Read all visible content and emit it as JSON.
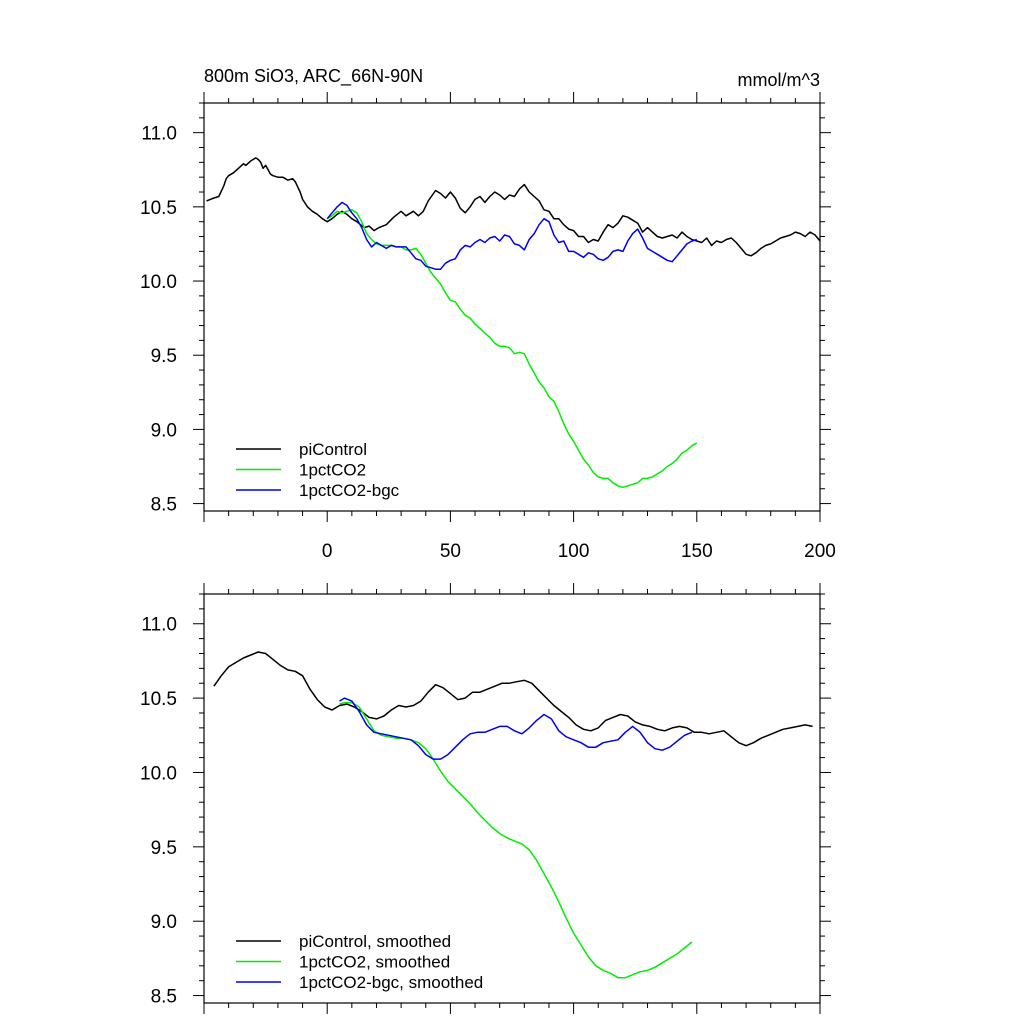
{
  "header": {
    "title": "800m SiO3, ARC_66N-90N",
    "units": "mmol/m^3"
  },
  "chart_data": [
    {
      "type": "line",
      "panel": "top",
      "title": "800m SiO3, ARC_66N-90N",
      "units": "mmol/m^3",
      "xlim": [
        -50,
        200
      ],
      "ylim": [
        8.45,
        11.2
      ],
      "x_ticks": [
        0,
        50,
        100,
        150,
        200
      ],
      "y_ticks": [
        8.5,
        9.0,
        9.5,
        10.0,
        10.5,
        11.0
      ],
      "x_tick_labels": [
        "0",
        "50",
        "100",
        "150",
        "200"
      ],
      "y_tick_labels": [
        "8.5",
        "9.0",
        "9.5",
        "10.0",
        "10.5",
        "11.0"
      ],
      "legend_position": "bottom-left",
      "series": [
        {
          "name": "piControl",
          "color": "#000000",
          "x": [
            -49,
            -46,
            -44,
            -42,
            -41,
            -40,
            -38,
            -36,
            -34,
            -33,
            -31,
            -30,
            -29,
            -28,
            -27,
            -26,
            -25,
            -24,
            -23,
            -22,
            -20,
            -18,
            -16,
            -14,
            -13,
            -11,
            -10,
            -8,
            -6,
            -4,
            -2,
            0,
            2,
            4,
            6,
            8,
            10,
            12,
            15,
            17,
            19,
            21,
            24,
            27,
            30,
            32,
            35,
            37,
            39,
            41,
            44,
            46,
            48,
            50,
            52,
            54,
            56,
            58,
            60,
            62,
            64,
            66,
            68,
            70,
            72,
            74,
            76,
            78,
            80,
            82,
            84,
            86,
            88,
            90,
            92,
            94,
            96,
            98,
            100,
            102,
            104,
            106,
            108,
            110,
            112,
            114,
            116,
            118,
            120,
            122,
            124,
            126,
            128,
            130,
            132,
            134,
            136,
            138,
            140,
            142,
            144,
            146,
            148,
            150,
            152,
            154,
            156,
            158,
            160,
            162,
            164,
            166,
            168,
            170,
            172,
            174,
            176,
            178,
            180,
            182,
            184,
            186,
            188,
            190,
            192,
            194,
            196,
            198,
            200
          ],
          "values": [
            10.54,
            10.56,
            10.57,
            10.64,
            10.69,
            10.71,
            10.73,
            10.76,
            10.79,
            10.78,
            10.81,
            10.82,
            10.83,
            10.82,
            10.8,
            10.76,
            10.78,
            10.75,
            10.72,
            10.71,
            10.7,
            10.7,
            10.68,
            10.69,
            10.67,
            10.6,
            10.55,
            10.5,
            10.47,
            10.45,
            10.42,
            10.4,
            10.42,
            10.45,
            10.47,
            10.45,
            10.42,
            10.4,
            10.36,
            10.37,
            10.34,
            10.36,
            10.38,
            10.43,
            10.47,
            10.44,
            10.47,
            10.44,
            10.47,
            10.54,
            10.61,
            10.59,
            10.56,
            10.6,
            10.56,
            10.49,
            10.46,
            10.5,
            10.55,
            10.57,
            10.53,
            10.57,
            10.6,
            10.58,
            10.55,
            10.58,
            10.57,
            10.62,
            10.65,
            10.6,
            10.57,
            10.54,
            10.48,
            10.47,
            10.42,
            10.42,
            10.38,
            10.35,
            10.34,
            10.3,
            10.3,
            10.26,
            10.28,
            10.27,
            10.33,
            10.38,
            10.36,
            10.39,
            10.44,
            10.43,
            10.41,
            10.39,
            10.33,
            10.36,
            10.33,
            10.3,
            10.29,
            10.3,
            10.31,
            10.29,
            10.33,
            10.3,
            10.28,
            10.27,
            10.26,
            10.29,
            10.24,
            10.27,
            10.26,
            10.28,
            10.29,
            10.26,
            10.22,
            10.18,
            10.17,
            10.19,
            10.22,
            10.24,
            10.25,
            10.27,
            10.29,
            10.3,
            10.31,
            10.33,
            10.32,
            10.3,
            10.33,
            10.31,
            10.27
          ]
        },
        {
          "name": "1pctCO2",
          "color": "#00ee00",
          "x": [
            0,
            2,
            4,
            6,
            8,
            10,
            12,
            14,
            16,
            18,
            20,
            22,
            24,
            26,
            28,
            30,
            32,
            34,
            36,
            38,
            40,
            42,
            44,
            46,
            48,
            50,
            52,
            54,
            56,
            58,
            60,
            62,
            64,
            66,
            68,
            70,
            72,
            74,
            76,
            78,
            80,
            82,
            84,
            86,
            88,
            90,
            92,
            94,
            96,
            98,
            100,
            102,
            104,
            106,
            108,
            110,
            112,
            114,
            116,
            118,
            120,
            122,
            124,
            126,
            128,
            130,
            132,
            134,
            136,
            138,
            140,
            142,
            144,
            146,
            148,
            150
          ],
          "values": [
            10.42,
            10.44,
            10.47,
            10.46,
            10.47,
            10.48,
            10.46,
            10.4,
            10.32,
            10.28,
            10.25,
            10.24,
            10.24,
            10.24,
            10.23,
            10.23,
            10.21,
            10.21,
            10.22,
            10.18,
            10.12,
            10.06,
            10.02,
            9.98,
            9.92,
            9.87,
            9.86,
            9.81,
            9.77,
            9.75,
            9.71,
            9.68,
            9.65,
            9.62,
            9.58,
            9.56,
            9.56,
            9.55,
            9.51,
            9.52,
            9.51,
            9.44,
            9.38,
            9.32,
            9.28,
            9.22,
            9.19,
            9.12,
            9.04,
            8.97,
            8.92,
            8.86,
            8.8,
            8.76,
            8.71,
            8.68,
            8.67,
            8.67,
            8.64,
            8.62,
            8.61,
            8.62,
            8.63,
            8.64,
            8.67,
            8.67,
            8.68,
            8.7,
            8.72,
            8.75,
            8.77,
            8.8,
            8.84,
            8.86,
            8.89,
            8.91
          ]
        },
        {
          "name": "1pctCO2-bgc",
          "color": "#0000ee",
          "x": [
            0,
            2,
            4,
            6,
            8,
            10,
            12,
            14,
            16,
            18,
            20,
            22,
            24,
            26,
            28,
            30,
            32,
            34,
            36,
            38,
            40,
            42,
            44,
            46,
            48,
            50,
            52,
            54,
            56,
            58,
            60,
            62,
            64,
            66,
            68,
            70,
            72,
            74,
            76,
            78,
            80,
            82,
            84,
            86,
            88,
            90,
            92,
            94,
            96,
            98,
            100,
            102,
            104,
            106,
            108,
            110,
            112,
            114,
            116,
            118,
            120,
            122,
            124,
            126,
            128,
            130,
            132,
            134,
            136,
            138,
            140,
            142,
            144,
            146,
            148,
            150
          ],
          "values": [
            10.42,
            10.46,
            10.5,
            10.53,
            10.51,
            10.46,
            10.42,
            10.36,
            10.28,
            10.23,
            10.26,
            10.24,
            10.22,
            10.24,
            10.23,
            10.23,
            10.23,
            10.19,
            10.15,
            10.14,
            10.1,
            10.09,
            10.08,
            10.08,
            10.12,
            10.14,
            10.15,
            10.21,
            10.24,
            10.23,
            10.26,
            10.28,
            10.26,
            10.29,
            10.3,
            10.27,
            10.31,
            10.3,
            10.25,
            10.24,
            10.21,
            10.28,
            10.32,
            10.38,
            10.42,
            10.4,
            10.31,
            10.26,
            10.27,
            10.2,
            10.2,
            10.18,
            10.16,
            10.19,
            10.18,
            10.15,
            10.14,
            10.16,
            10.2,
            10.21,
            10.2,
            10.27,
            10.32,
            10.35,
            10.29,
            10.22,
            10.2,
            10.18,
            10.16,
            10.14,
            10.13,
            10.17,
            10.21,
            10.25,
            10.27,
            10.28
          ]
        }
      ]
    },
    {
      "type": "line",
      "panel": "bottom",
      "xlim": [
        -50,
        200
      ],
      "ylim": [
        8.45,
        11.2
      ],
      "x_ticks": [
        0,
        50,
        100,
        150,
        200
      ],
      "y_ticks": [
        8.5,
        9.0,
        9.5,
        10.0,
        10.5,
        11.0
      ],
      "y_tick_labels": [
        "8.5",
        "9.0",
        "9.5",
        "10.0",
        "10.5",
        "11.0"
      ],
      "legend_position": "bottom-left",
      "series": [
        {
          "name": "piControl, smoothed",
          "color": "#000000",
          "x": [
            -46,
            -43,
            -40,
            -37,
            -34,
            -31,
            -28,
            -25,
            -22,
            -19,
            -16,
            -13,
            -10,
            -7,
            -4,
            -1,
            2,
            5,
            8,
            11,
            14,
            17,
            20,
            23,
            26,
            29,
            32,
            35,
            38,
            41,
            44,
            47,
            50,
            53,
            56,
            59,
            62,
            65,
            68,
            71,
            74,
            77,
            80,
            83,
            86,
            89,
            92,
            95,
            98,
            101,
            104,
            107,
            110,
            113,
            116,
            119,
            122,
            125,
            128,
            131,
            134,
            137,
            140,
            143,
            146,
            149,
            152,
            155,
            158,
            161,
            164,
            167,
            170,
            173,
            176,
            179,
            182,
            185,
            188,
            191,
            194,
            197
          ],
          "values": [
            10.58,
            10.65,
            10.71,
            10.74,
            10.77,
            10.79,
            10.81,
            10.8,
            10.76,
            10.72,
            10.69,
            10.68,
            10.65,
            10.56,
            10.49,
            10.44,
            10.42,
            10.45,
            10.46,
            10.44,
            10.41,
            10.37,
            10.36,
            10.38,
            10.42,
            10.45,
            10.44,
            10.45,
            10.48,
            10.54,
            10.59,
            10.57,
            10.53,
            10.49,
            10.5,
            10.54,
            10.54,
            10.56,
            10.58,
            10.6,
            10.6,
            10.61,
            10.62,
            10.6,
            10.55,
            10.5,
            10.45,
            10.41,
            10.37,
            10.32,
            10.29,
            10.28,
            10.3,
            10.35,
            10.37,
            10.39,
            10.38,
            10.34,
            10.32,
            10.31,
            10.29,
            10.28,
            10.3,
            10.31,
            10.3,
            10.27,
            10.27,
            10.26,
            10.27,
            10.28,
            10.24,
            10.2,
            10.18,
            10.2,
            10.23,
            10.25,
            10.27,
            10.29,
            10.3,
            10.31,
            10.32,
            10.31
          ]
        },
        {
          "name": "1pctCO2, smoothed",
          "color": "#00ee00",
          "x": [
            5,
            7,
            10,
            13,
            16,
            19,
            22,
            25,
            28,
            31,
            34,
            37,
            40,
            43,
            46,
            49,
            52,
            55,
            58,
            61,
            64,
            67,
            70,
            73,
            76,
            79,
            82,
            85,
            88,
            91,
            94,
            97,
            100,
            103,
            106,
            109,
            112,
            115,
            118,
            121,
            124,
            127,
            130,
            133,
            136,
            139,
            142,
            145,
            148
          ],
          "values": [
            10.46,
            10.47,
            10.47,
            10.44,
            10.36,
            10.28,
            10.25,
            10.24,
            10.23,
            10.23,
            10.22,
            10.2,
            10.16,
            10.09,
            10.01,
            9.94,
            9.89,
            9.84,
            9.79,
            9.73,
            9.68,
            9.63,
            9.59,
            9.56,
            9.54,
            9.52,
            9.48,
            9.41,
            9.32,
            9.23,
            9.13,
            9.02,
            8.92,
            8.84,
            8.76,
            8.7,
            8.67,
            8.65,
            8.62,
            8.62,
            8.64,
            8.66,
            8.67,
            8.69,
            8.72,
            8.75,
            8.78,
            8.82,
            8.86
          ]
        },
        {
          "name": "1pctCO2-bgc, smoothed",
          "color": "#0000ee",
          "x": [
            5,
            7,
            10,
            13,
            16,
            19,
            22,
            25,
            28,
            31,
            34,
            37,
            40,
            43,
            46,
            49,
            52,
            55,
            58,
            61,
            64,
            67,
            70,
            73,
            76,
            79,
            82,
            85,
            88,
            91,
            94,
            97,
            100,
            103,
            106,
            109,
            112,
            115,
            118,
            121,
            124,
            127,
            130,
            133,
            136,
            139,
            142,
            145,
            148
          ],
          "values": [
            10.48,
            10.5,
            10.48,
            10.41,
            10.32,
            10.27,
            10.26,
            10.25,
            10.24,
            10.23,
            10.22,
            10.18,
            10.12,
            10.09,
            10.09,
            10.12,
            10.17,
            10.22,
            10.26,
            10.27,
            10.27,
            10.29,
            10.31,
            10.31,
            10.28,
            10.26,
            10.3,
            10.35,
            10.39,
            10.36,
            10.28,
            10.24,
            10.22,
            10.2,
            10.17,
            10.17,
            10.2,
            10.21,
            10.22,
            10.27,
            10.31,
            10.27,
            10.2,
            10.16,
            10.15,
            10.17,
            10.21,
            10.25,
            10.27
          ]
        }
      ]
    }
  ]
}
